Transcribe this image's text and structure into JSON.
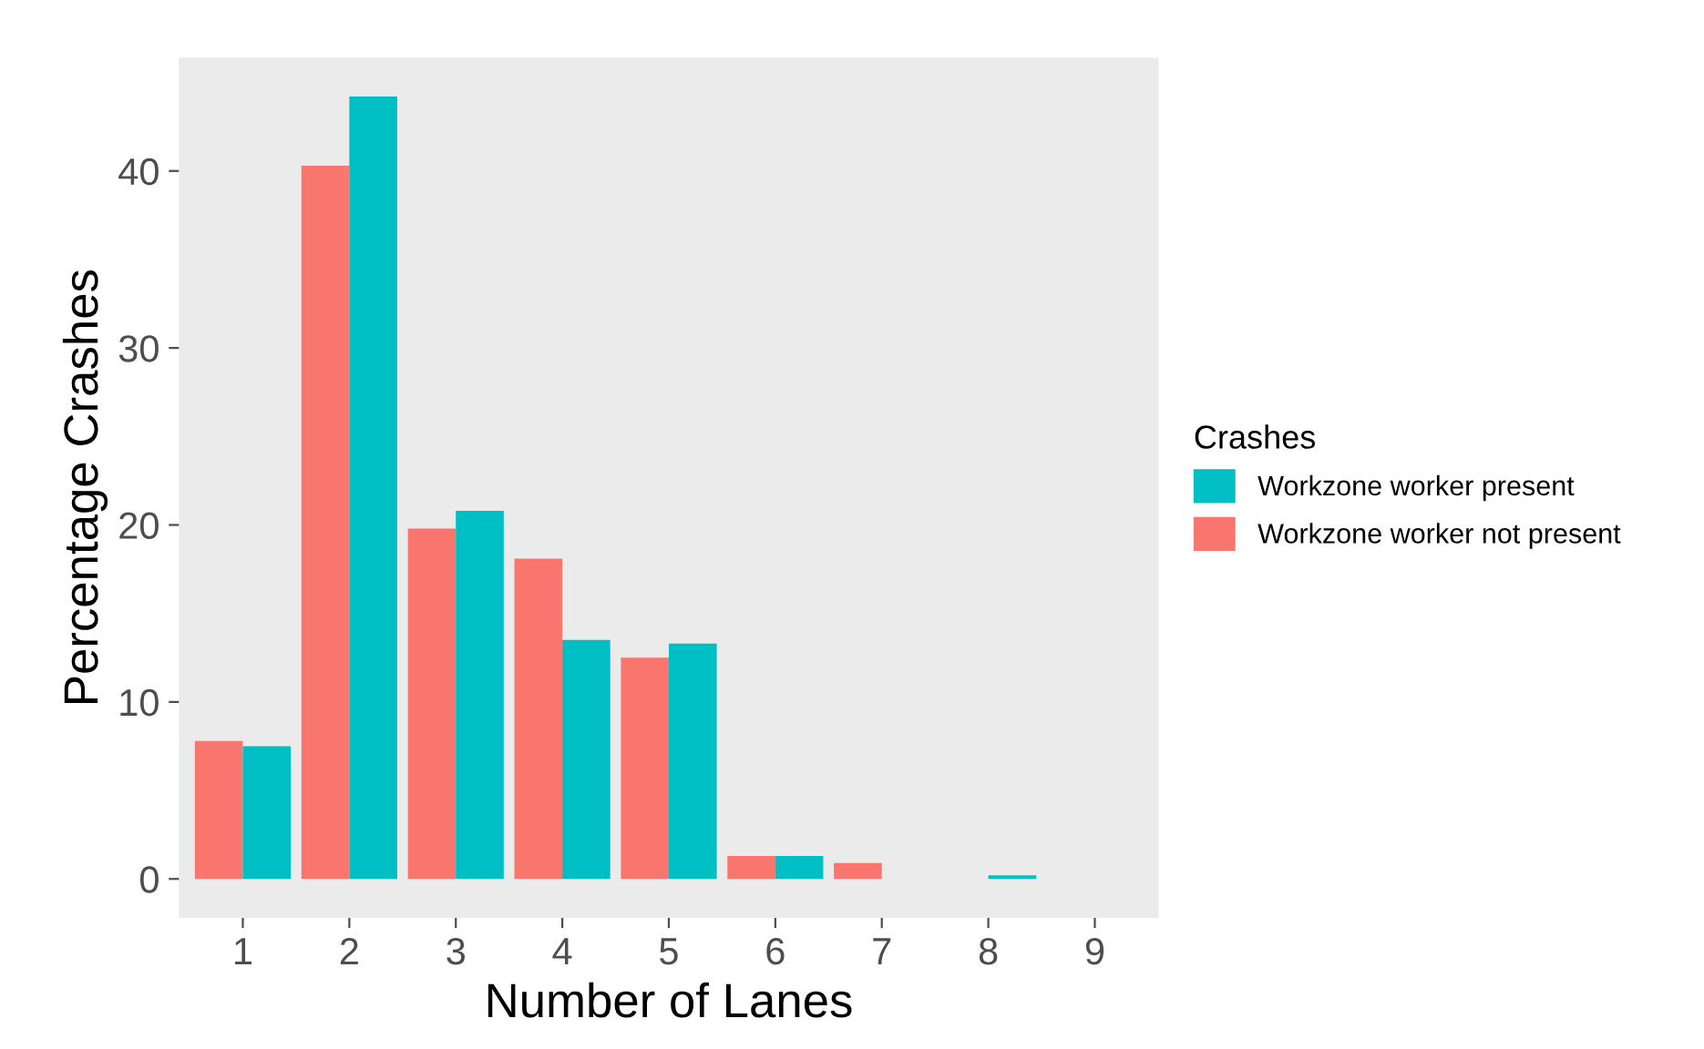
{
  "chart_data": {
    "type": "bar",
    "xlabel": "Number of Lanes",
    "ylabel": "Percentage Crashes",
    "legend_title": "Crashes",
    "categories": [
      "1",
      "2",
      "3",
      "4",
      "5",
      "6",
      "7",
      "8",
      "9"
    ],
    "series": [
      {
        "name": "Workzone worker not present",
        "color": "#f8766d",
        "values": [
          7.8,
          40.3,
          19.8,
          18.1,
          12.5,
          1.3,
          0.9,
          0,
          0
        ]
      },
      {
        "name": "Workzone worker present",
        "color": "#00bfc4",
        "values": [
          7.5,
          44.2,
          20.8,
          13.5,
          13.3,
          1.3,
          0,
          0.2,
          0
        ]
      }
    ],
    "ylim": [
      -2.2,
      46.4
    ],
    "yticks": [
      0,
      10,
      20,
      30,
      40
    ],
    "grid": false,
    "legend": "right"
  }
}
